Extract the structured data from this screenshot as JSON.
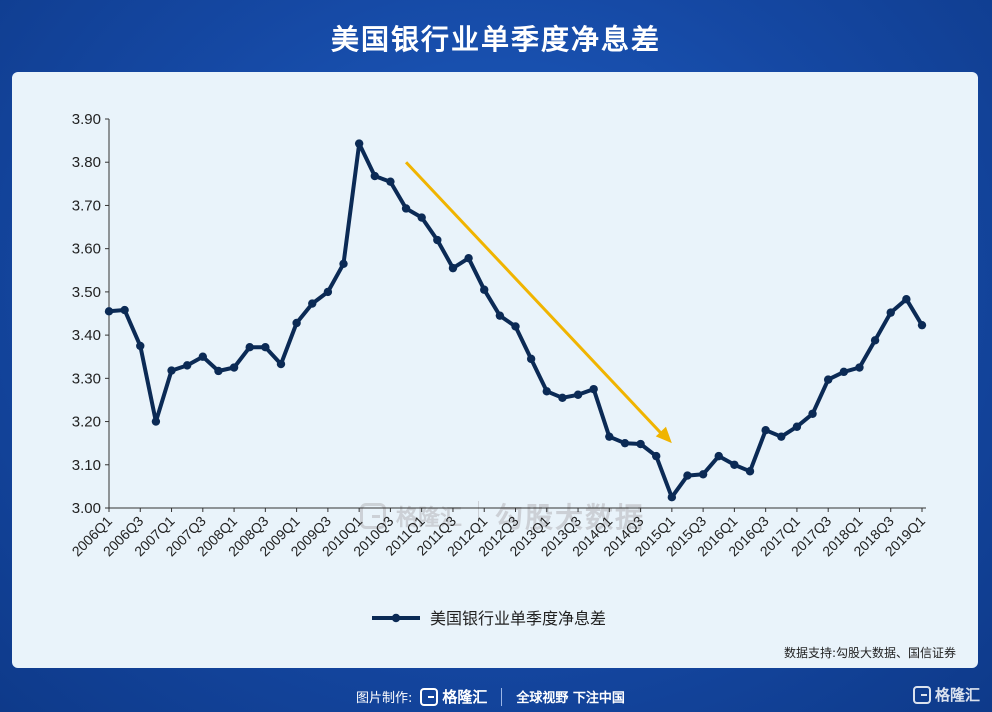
{
  "page": {
    "title": "美国银行业单季度净息差"
  },
  "footer": {
    "credit_label": "图片制作:",
    "logo_text": "格隆汇",
    "slogan": "全球视野 下注中国"
  },
  "watermark": {
    "brand": "格隆汇",
    "text": "勾股大数据"
  },
  "source": "数据支持:勾股大数据、国信证券",
  "colors": {
    "line": "#0b2a55",
    "arrow": "#f0b400",
    "panel": "#e9f3fa",
    "background": "#1548a3"
  },
  "chart_data": {
    "type": "line",
    "title": "",
    "xlabel": "",
    "ylabel": "",
    "ylim": [
      3.0,
      3.9
    ],
    "yticks": [
      "3.00",
      "3.10",
      "3.20",
      "3.30",
      "3.40",
      "3.50",
      "3.60",
      "3.70",
      "3.80",
      "3.90"
    ],
    "tick_labels": [
      "2006Q1",
      "2006Q3",
      "2007Q1",
      "2007Q3",
      "2008Q1",
      "2008Q3",
      "2009Q1",
      "2009Q3",
      "2010Q1",
      "2010Q3",
      "2011Q1",
      "2011Q3",
      "2012Q1",
      "2012Q3",
      "2013Q1",
      "2013Q3",
      "2014Q1",
      "2014Q3",
      "2015Q1",
      "2015Q3",
      "2016Q1",
      "2016Q3",
      "2017Q1",
      "2017Q3",
      "2018Q1",
      "2018Q3",
      "2019Q1"
    ],
    "series": [
      {
        "name": "美国银行业单季度净息差",
        "values": [
          3.455,
          3.458,
          3.375,
          3.2,
          3.318,
          3.33,
          3.35,
          3.317,
          3.325,
          3.372,
          3.372,
          3.333,
          3.428,
          3.473,
          3.5,
          3.565,
          3.843,
          3.768,
          3.755,
          3.693,
          3.672,
          3.62,
          3.555,
          3.578,
          3.505,
          3.445,
          3.42,
          3.345,
          3.27,
          3.255,
          3.262,
          3.275,
          3.165,
          3.15,
          3.148,
          3.12,
          3.025,
          3.075,
          3.078,
          3.12,
          3.1,
          3.085,
          3.18,
          3.165,
          3.188,
          3.218,
          3.297,
          3.315,
          3.325,
          3.388,
          3.452,
          3.483,
          3.423
        ]
      }
    ],
    "legend": "bottom-center",
    "grid": false,
    "annotation": "downward arrow from 2010Q4 to 2015Q1"
  }
}
